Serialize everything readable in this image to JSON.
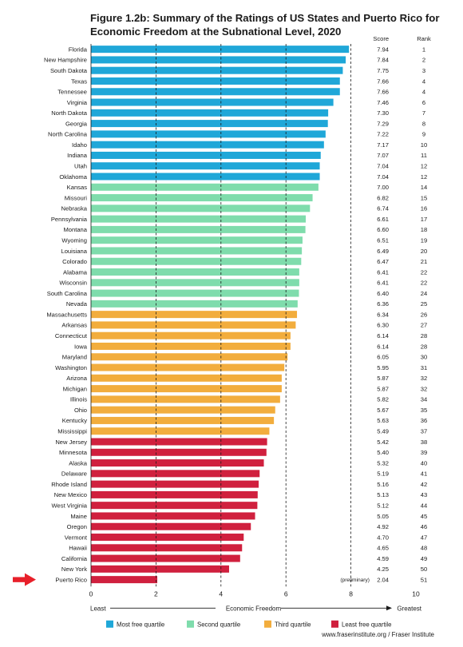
{
  "chart_data": {
    "type": "bar",
    "orientation": "horizontal",
    "title": "Figure 1.2b: Summary of the Ratings of US States and Puerto Rico for Economic Freedom at the Subnational Level, 2020",
    "column_headers": {
      "score": "Score",
      "rank": "Rank"
    },
    "xlabel": "Economic Freedom",
    "axis_left_label": "Least",
    "axis_right_label": "Greatest",
    "xlim": [
      0,
      10
    ],
    "xticks": [
      0,
      2,
      4,
      6,
      8,
      10
    ],
    "gridlines": [
      2,
      4,
      6,
      8
    ],
    "quartiles": [
      {
        "name": "Most free quartile",
        "color": "#1fa7d8"
      },
      {
        "name": "Second quartile",
        "color": "#7fdcac"
      },
      {
        "name": "Third quartile",
        "color": "#f2ad3d"
      },
      {
        "name": "Least free quartile",
        "color": "#d0203e"
      }
    ],
    "states": [
      {
        "name": "Florida",
        "score": 7.94,
        "rank": "1",
        "quartile": 0
      },
      {
        "name": "New Hampshire",
        "score": 7.84,
        "rank": "2",
        "quartile": 0
      },
      {
        "name": "South Dakota",
        "score": 7.75,
        "rank": "3",
        "quartile": 0
      },
      {
        "name": "Texas",
        "score": 7.66,
        "rank": "4",
        "quartile": 0
      },
      {
        "name": "Tennessee",
        "score": 7.66,
        "rank": "4",
        "quartile": 0
      },
      {
        "name": "Virginia",
        "score": 7.46,
        "rank": "6",
        "quartile": 0
      },
      {
        "name": "North Dakota",
        "score": 7.3,
        "rank": "7",
        "quartile": 0
      },
      {
        "name": "Georgia",
        "score": 7.29,
        "rank": "8",
        "quartile": 0
      },
      {
        "name": "North Carolina",
        "score": 7.22,
        "rank": "9",
        "quartile": 0
      },
      {
        "name": "Idaho",
        "score": 7.17,
        "rank": "10",
        "quartile": 0
      },
      {
        "name": "Indiana",
        "score": 7.07,
        "rank": "11",
        "quartile": 0
      },
      {
        "name": "Utah",
        "score": 7.04,
        "rank": "12",
        "quartile": 0
      },
      {
        "name": "Oklahoma",
        "score": 7.04,
        "rank": "12",
        "quartile": 0
      },
      {
        "name": "Kansas",
        "score": 7.0,
        "rank": "14",
        "quartile": 1
      },
      {
        "name": "Missouri",
        "score": 6.82,
        "rank": "15",
        "quartile": 1
      },
      {
        "name": "Nebraska",
        "score": 6.74,
        "rank": "16",
        "quartile": 1
      },
      {
        "name": "Pennsylvania",
        "score": 6.61,
        "rank": "17",
        "quartile": 1
      },
      {
        "name": "Montana",
        "score": 6.6,
        "rank": "18",
        "quartile": 1
      },
      {
        "name": "Wyoming",
        "score": 6.51,
        "rank": "19",
        "quartile": 1
      },
      {
        "name": "Louisiana",
        "score": 6.49,
        "rank": "20",
        "quartile": 1
      },
      {
        "name": "Colorado",
        "score": 6.47,
        "rank": "21",
        "quartile": 1
      },
      {
        "name": "Alabama",
        "score": 6.41,
        "rank": "22",
        "quartile": 1
      },
      {
        "name": "Wisconsin",
        "score": 6.41,
        "rank": "22",
        "quartile": 1
      },
      {
        "name": "South Carolina",
        "score": 6.4,
        "rank": "24",
        "quartile": 1
      },
      {
        "name": "Nevada",
        "score": 6.36,
        "rank": "25",
        "quartile": 1
      },
      {
        "name": "Massachusetts",
        "score": 6.34,
        "rank": "26",
        "quartile": 2
      },
      {
        "name": "Arkansas",
        "score": 6.3,
        "rank": "27",
        "quartile": 2
      },
      {
        "name": "Connecticut",
        "score": 6.14,
        "rank": "28",
        "quartile": 2
      },
      {
        "name": "Iowa",
        "score": 6.14,
        "rank": "28",
        "quartile": 2
      },
      {
        "name": "Maryland",
        "score": 6.05,
        "rank": "30",
        "quartile": 2
      },
      {
        "name": "Washington",
        "score": 5.95,
        "rank": "31",
        "quartile": 2
      },
      {
        "name": "Arizona",
        "score": 5.87,
        "rank": "32",
        "quartile": 2
      },
      {
        "name": "Michigan",
        "score": 5.87,
        "rank": "32",
        "quartile": 2
      },
      {
        "name": "Illinois",
        "score": 5.82,
        "rank": "34",
        "quartile": 2
      },
      {
        "name": "Ohio",
        "score": 5.67,
        "rank": "35",
        "quartile": 2
      },
      {
        "name": "Kentucky",
        "score": 5.63,
        "rank": "36",
        "quartile": 2
      },
      {
        "name": "Mississippi",
        "score": 5.49,
        "rank": "37",
        "quartile": 2
      },
      {
        "name": "New Jersey",
        "score": 5.42,
        "rank": "38",
        "quartile": 3
      },
      {
        "name": "Minnesota",
        "score": 5.4,
        "rank": "39",
        "quartile": 3
      },
      {
        "name": "Alaska",
        "score": 5.32,
        "rank": "40",
        "quartile": 3
      },
      {
        "name": "Delaware",
        "score": 5.19,
        "rank": "41",
        "quartile": 3
      },
      {
        "name": "Rhode Island",
        "score": 5.16,
        "rank": "42",
        "quartile": 3
      },
      {
        "name": "New Mexico",
        "score": 5.13,
        "rank": "43",
        "quartile": 3
      },
      {
        "name": "West Virginia",
        "score": 5.12,
        "rank": "44",
        "quartile": 3
      },
      {
        "name": "Maine",
        "score": 5.05,
        "rank": "45",
        "quartile": 3
      },
      {
        "name": "Oregon",
        "score": 4.92,
        "rank": "46",
        "quartile": 3
      },
      {
        "name": "Vermont",
        "score": 4.7,
        "rank": "47",
        "quartile": 3
      },
      {
        "name": "Hawaii",
        "score": 4.65,
        "rank": "48",
        "quartile": 3
      },
      {
        "name": "California",
        "score": 4.59,
        "rank": "49",
        "quartile": 3
      },
      {
        "name": "New York",
        "score": 4.25,
        "rank": "50",
        "quartile": 3
      },
      {
        "name": "Puerto Rico",
        "score": 2.04,
        "rank": "51",
        "quartile": 3,
        "note": "(preliminary)",
        "highlighted": true
      }
    ],
    "highlight_arrow_color": "#e8202a",
    "source": "www.fraserinstitute.org / Fraser Institute"
  }
}
